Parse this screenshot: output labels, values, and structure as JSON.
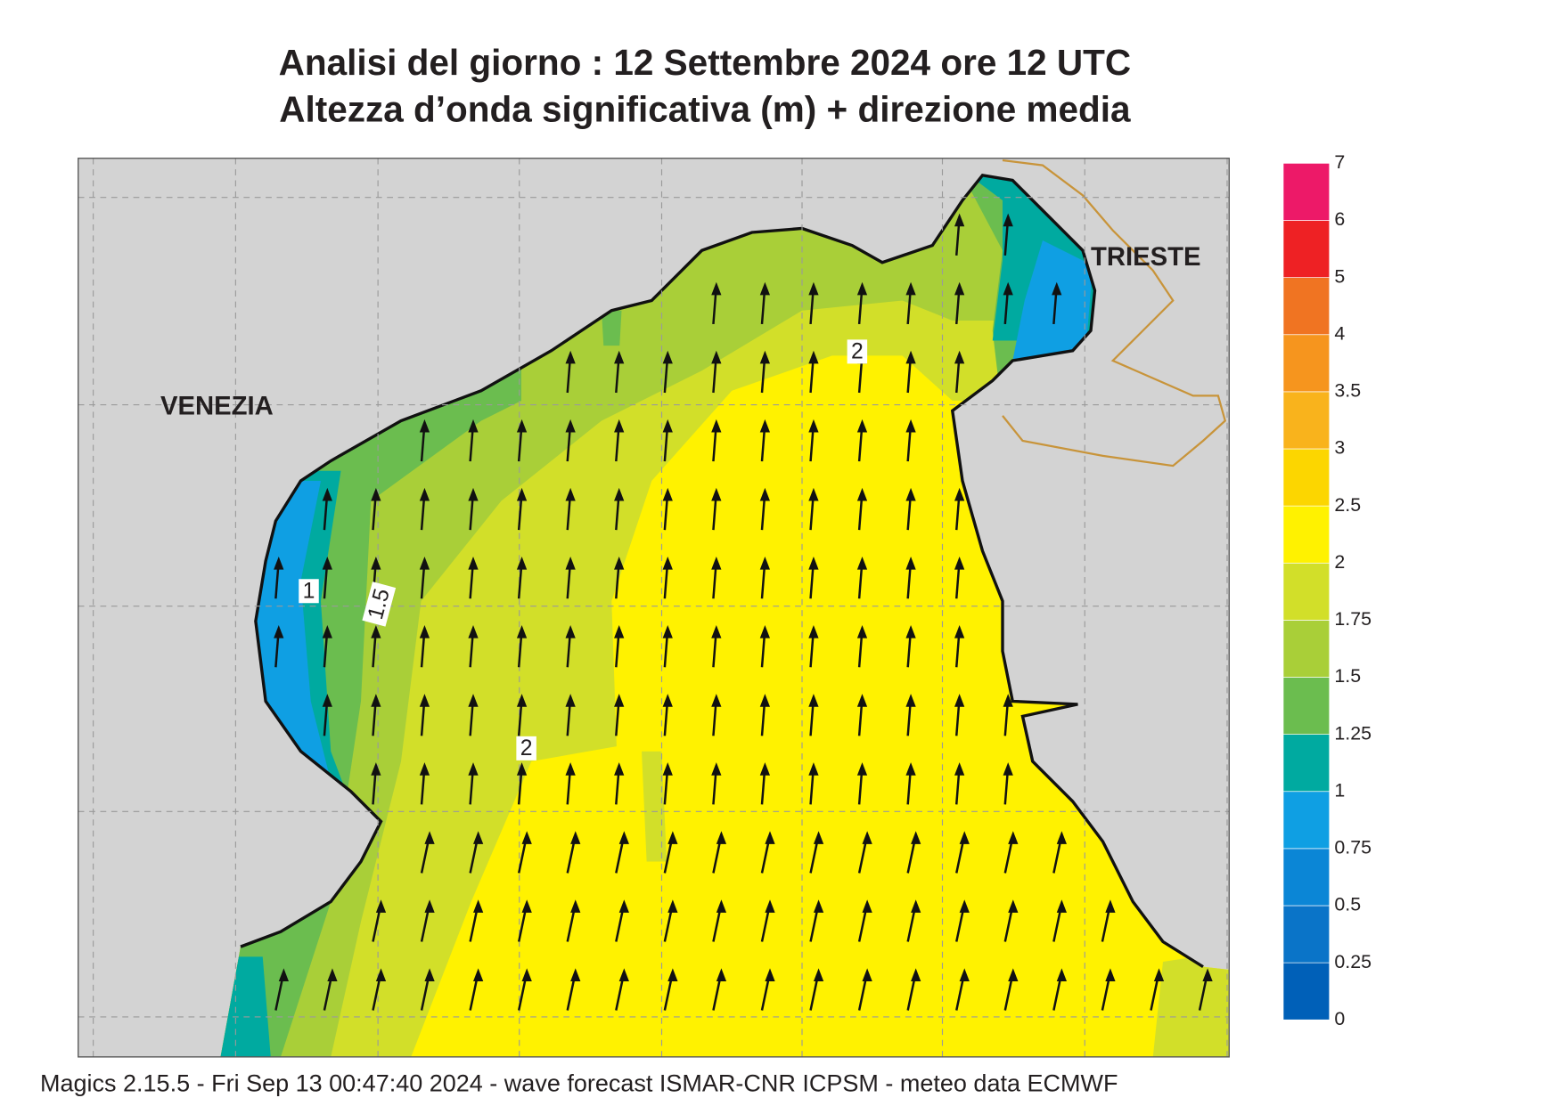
{
  "header": {
    "title_line1": "Analisi del giorno :  12 Settembre 2024   ore 12 UTC",
    "title_line2": "Altezza d’onda significativa (m) + direzione media"
  },
  "map": {
    "places": [
      "VENEZIA",
      "TRIESTE"
    ],
    "contour_labels": [
      "2",
      "2",
      "1",
      "1.5"
    ]
  },
  "colorbar": {
    "labels": [
      "0",
      "0.25",
      "0.5",
      "0.75",
      "1",
      "1.25",
      "1.5",
      "1.75",
      "2",
      "2.5",
      "3",
      "3.5",
      "4",
      "5",
      "6",
      "7"
    ],
    "colors": [
      "#0060b8",
      "#0a74c8",
      "#0b86d6",
      "#0f9fe3",
      "#00aaa0",
      "#6bbd4f",
      "#a9cf38",
      "#d2df29",
      "#fff200",
      "#fcd600",
      "#f9b31c",
      "#f6951e",
      "#f07422",
      "#ee2124",
      "#ed1968"
    ]
  },
  "footer": "Magics 2.15.5 - Fri Sep 13 00:47:40 2024 - wave forecast  ISMAR-CNR  ICPSM - meteo data    ECMWF"
}
